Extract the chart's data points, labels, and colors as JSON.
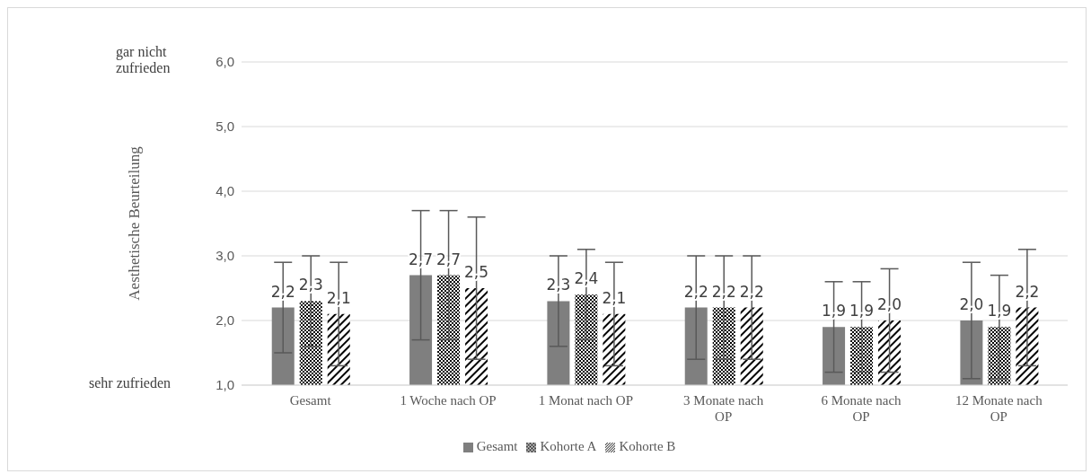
{
  "chart_data": {
    "type": "bar",
    "ylabel": "Aesthetische Beurteilung",
    "categories": [
      "Gesamt",
      "1 Woche nach OP",
      "1 Monat nach OP",
      "3 Monate nach OP",
      "6 Monate nach OP",
      "12 Monate nach OP"
    ],
    "series": [
      {
        "name": "Gesamt",
        "color": "#7f7f7f",
        "values": [
          2.2,
          2.7,
          2.3,
          2.2,
          1.9,
          2.0
        ],
        "value_labels": [
          "2,2",
          "2,7",
          "2,3",
          "2,2",
          "1,9",
          "2,0"
        ],
        "errors": [
          [
            1.5,
            2.9
          ],
          [
            1.7,
            3.7
          ],
          [
            1.6,
            3.0
          ],
          [
            1.4,
            3.0
          ],
          [
            1.2,
            2.6
          ],
          [
            1.1,
            2.9
          ]
        ]
      },
      {
        "name": "Kohorte A",
        "color": "#000000",
        "values": [
          2.3,
          2.7,
          2.4,
          2.2,
          1.9,
          1.9
        ],
        "value_labels": [
          "2,3",
          "2,7",
          "2,4",
          "2,2",
          "1,9",
          "1,9"
        ],
        "errors": [
          [
            1.6,
            3.0
          ],
          [
            1.7,
            3.7
          ],
          [
            1.7,
            3.1
          ],
          [
            1.4,
            3.0
          ],
          [
            1.2,
            2.6
          ],
          [
            1.1,
            2.7
          ]
        ]
      },
      {
        "name": "Kohorte B",
        "color": "#000000",
        "values": [
          2.1,
          2.5,
          2.1,
          2.2,
          2.0,
          2.2
        ],
        "value_labels": [
          "2,1",
          "2,5",
          "2,1",
          "2,2",
          "2,0",
          "2,2"
        ],
        "errors": [
          [
            1.3,
            2.9
          ],
          [
            1.4,
            3.6
          ],
          [
            1.3,
            2.9
          ],
          [
            1.4,
            3.0
          ],
          [
            1.2,
            2.8
          ],
          [
            1.3,
            3.1
          ]
        ]
      }
    ],
    "ylim": [
      1,
      6
    ],
    "yticks": [
      {
        "value": 1,
        "label": "1,0"
      },
      {
        "value": 2,
        "label": "2,0"
      },
      {
        "value": 3,
        "label": "3,0"
      },
      {
        "value": 4,
        "label": "4,0"
      },
      {
        "value": 5,
        "label": "5,0"
      },
      {
        "value": 6,
        "label": "6,0"
      }
    ],
    "grid": "y",
    "legend": "bottom",
    "annotations": [
      "gar nicht zufrieden",
      "sehr zufrieden"
    ]
  }
}
